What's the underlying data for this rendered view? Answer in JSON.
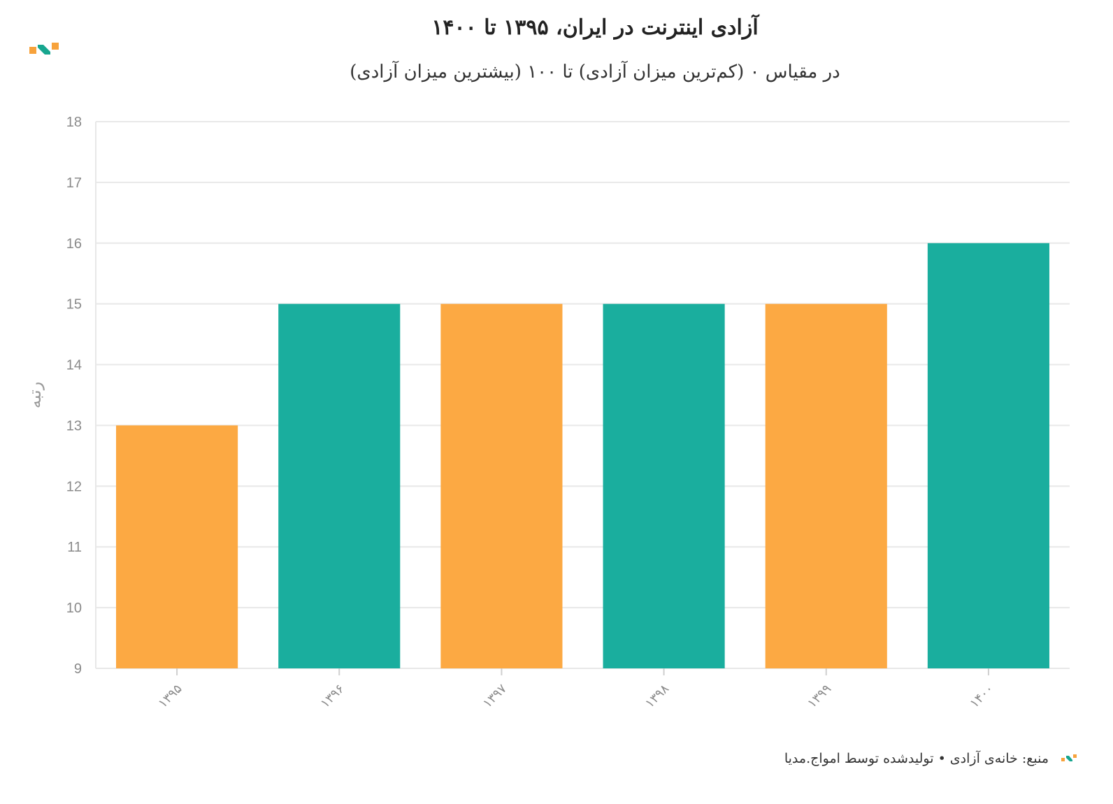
{
  "header": {
    "title": "آزادی اینترنت در ایران، ۱۳۹۵ تا ۱۴۰۰",
    "subtitle": "در مقیاس ۰ (کم‌ترین میزان آزادی) تا ۱۰۰ (بیشترین میزان آزادی)"
  },
  "footer": {
    "source": "منبع: خانه‌ی آزادی • تولیدشده توسط امواج.مدیا"
  },
  "logo": {
    "icon": "amwaj-logo-icon",
    "colors": [
      "#f7a23b",
      "#17a68f"
    ]
  },
  "chart_data": {
    "type": "bar",
    "categories": [
      "۱۳۹۵",
      "۱۳۹۶",
      "۱۳۹۷",
      "۱۳۹۸",
      "۱۳۹۹",
      "۱۴۰۰"
    ],
    "values": [
      13,
      15,
      15,
      15,
      15,
      16
    ],
    "bar_colors": [
      "#fca943",
      "#1aae9e",
      "#fca943",
      "#1aae9e",
      "#fca943",
      "#1aae9e"
    ],
    "ylabel": "رتبه",
    "xlabel": "",
    "ylim": [
      9,
      18
    ],
    "yticks": [
      9,
      10,
      11,
      12,
      13,
      14,
      15,
      16,
      17,
      18
    ],
    "grid": true,
    "legend": "none"
  }
}
